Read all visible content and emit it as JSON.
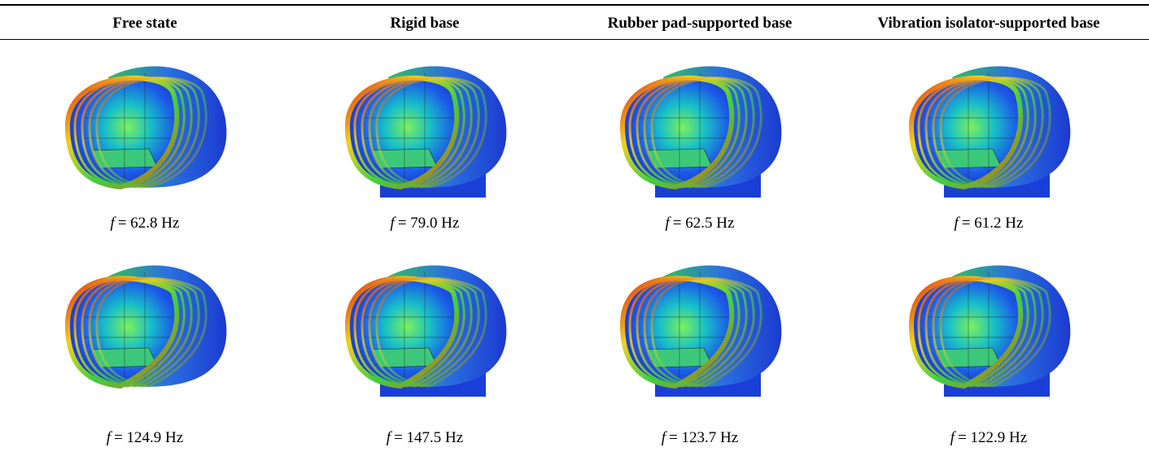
{
  "table": {
    "headers": [
      "Free state",
      "Rigid base",
      "Rubber pad-supported base",
      "Vibration isolator-supported base"
    ],
    "rows": [
      [
        {
          "symbol": "f",
          "text": "= 62.8 Hz"
        },
        {
          "symbol": "f",
          "text": "= 79.0 Hz"
        },
        {
          "symbol": "f",
          "text": "= 62.5 Hz"
        },
        {
          "symbol": "f",
          "text": "= 61.2 Hz"
        }
      ],
      [
        {
          "symbol": "f",
          "text": "= 124.9 Hz"
        },
        {
          "symbol": "f",
          "text": "= 147.5 Hz"
        },
        {
          "symbol": "f",
          "text": "= 123.7 Hz"
        },
        {
          "symbol": "f",
          "text": "= 122.9 Hz"
        }
      ]
    ]
  }
}
